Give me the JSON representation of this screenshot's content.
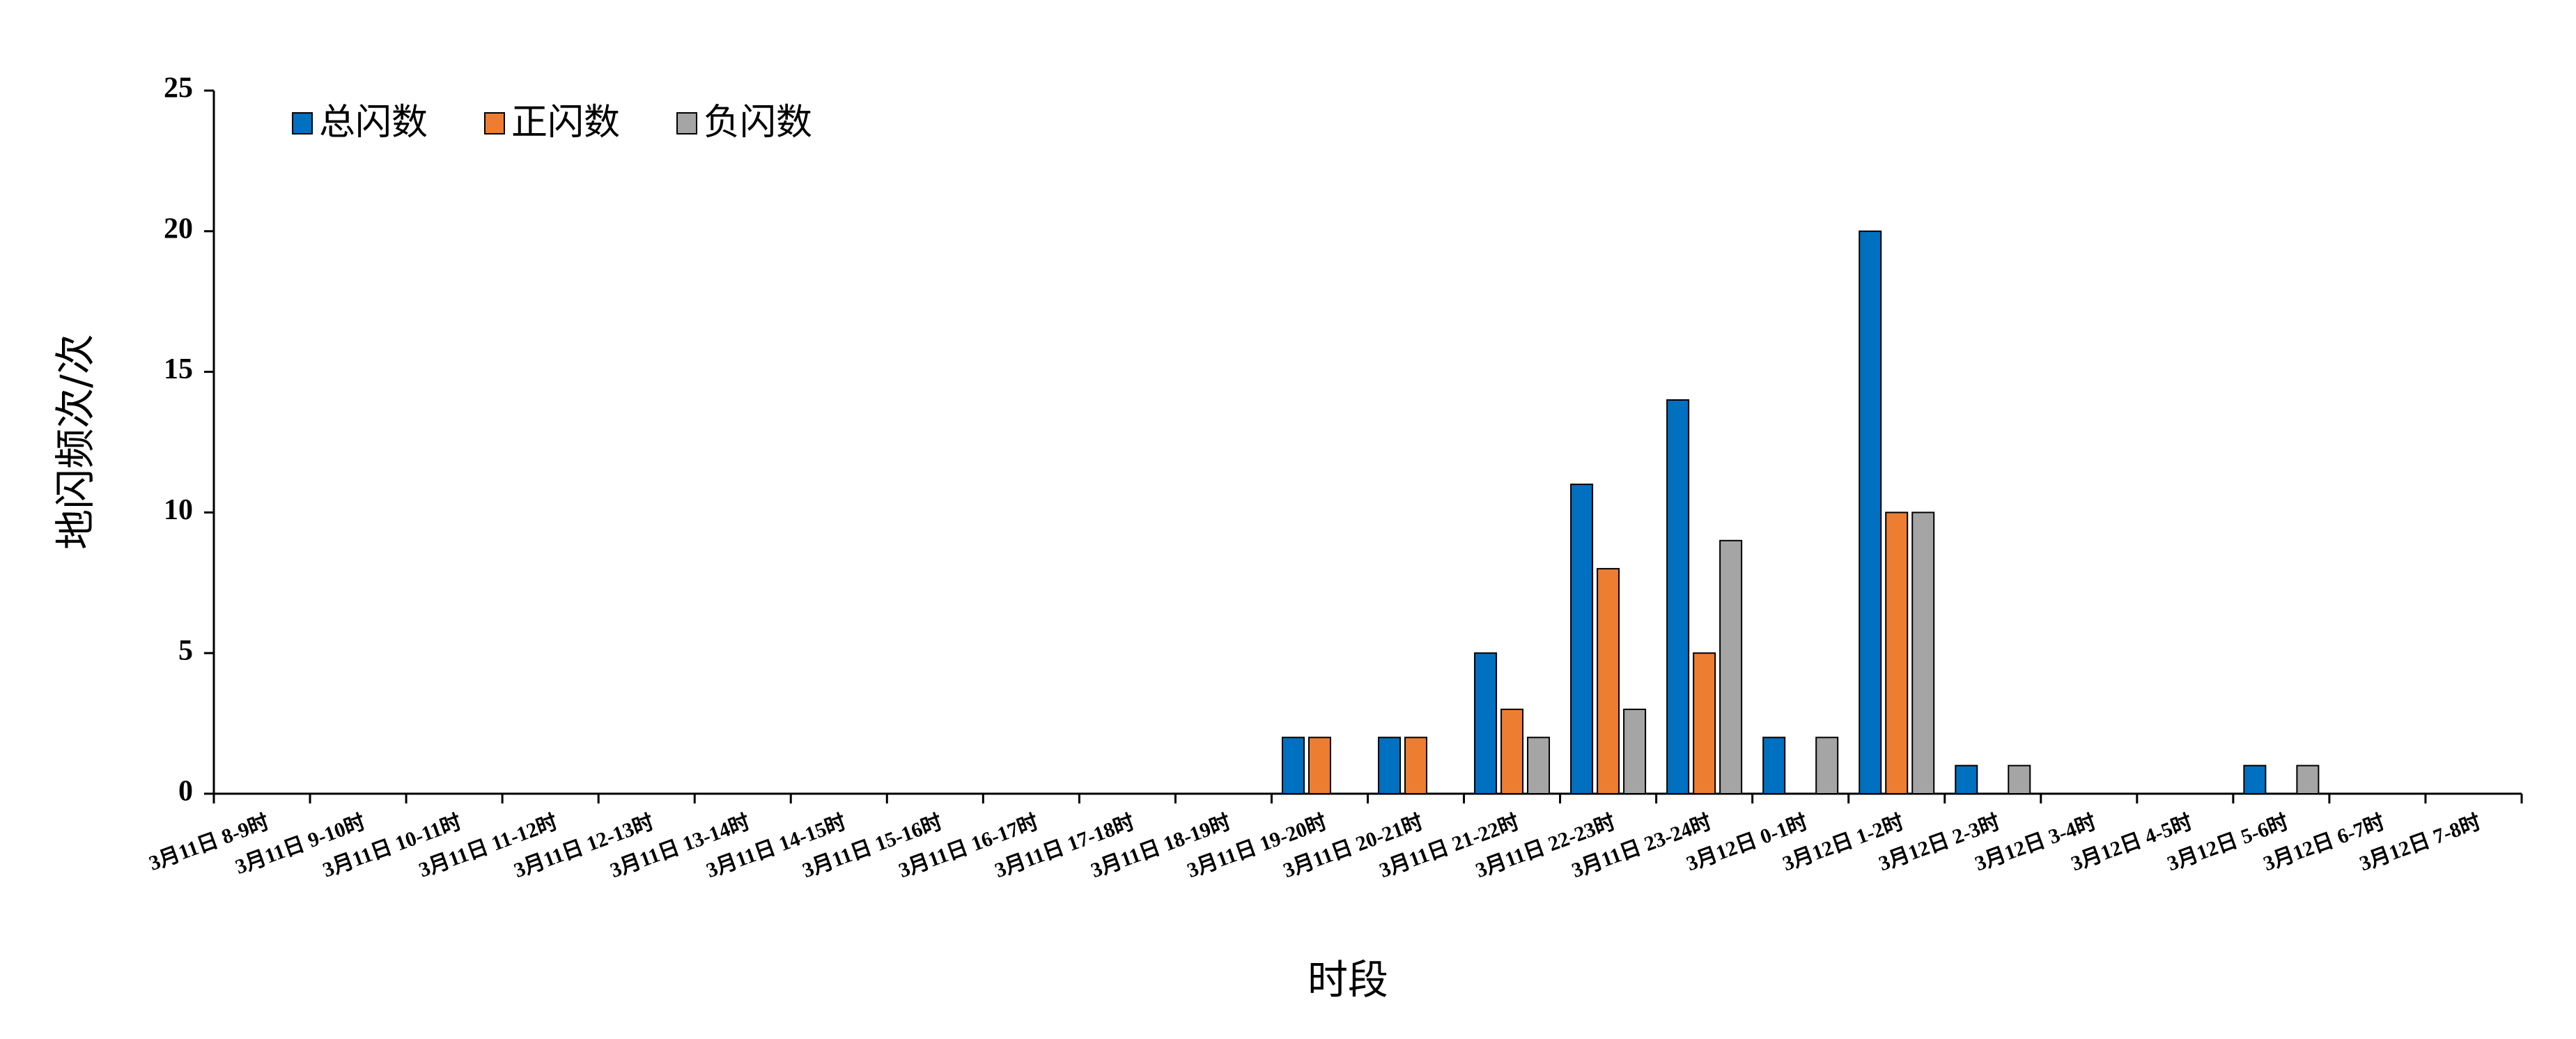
{
  "chart_data": {
    "type": "bar",
    "x_label": "时段",
    "y_label": "地闪频次/次",
    "categories": [
      "3月11日 8-9时",
      "3月11日 9-10时",
      "3月11日 10-11时",
      "3月11日 11-12时",
      "3月11日 12-13时",
      "3月11日 13-14时",
      "3月11日 14-15时",
      "3月11日 15-16时",
      "3月11日 16-17时",
      "3月11日 17-18时",
      "3月11日 18-19时",
      "3月11日 19-20时",
      "3月11日 20-21时",
      "3月11日 21-22时",
      "3月11日 22-23时",
      "3月11日 23-24时",
      "3月12日 0-1时",
      "3月12日 1-2时",
      "3月12日 2-3时",
      "3月12日 3-4时",
      "3月12日 4-5时",
      "3月12日 5-6时",
      "3月12日 6-7时",
      "3月12日 7-8时"
    ],
    "series": [
      {
        "name": "总闪数",
        "color": "#0070c0",
        "values": [
          0,
          0,
          0,
          0,
          0,
          0,
          0,
          0,
          0,
          0,
          0,
          2,
          2,
          5,
          11,
          14,
          2,
          20,
          1,
          0,
          0,
          1,
          0,
          0
        ]
      },
      {
        "name": "正闪数",
        "color": "#ed7d31",
        "values": [
          0,
          0,
          0,
          0,
          0,
          0,
          0,
          0,
          0,
          0,
          0,
          2,
          2,
          3,
          8,
          5,
          0,
          10,
          0,
          0,
          0,
          0,
          0,
          0
        ]
      },
      {
        "name": "负闪数",
        "color": "#a5a5a5",
        "values": [
          0,
          0,
          0,
          0,
          0,
          0,
          0,
          0,
          0,
          0,
          0,
          0,
          0,
          2,
          3,
          9,
          2,
          10,
          1,
          0,
          0,
          1,
          0,
          0
        ]
      }
    ],
    "ylim": [
      0,
      25
    ],
    "yticks": [
      0,
      5,
      10,
      15,
      20,
      25
    ],
    "grid": false,
    "legend": "top-left"
  }
}
